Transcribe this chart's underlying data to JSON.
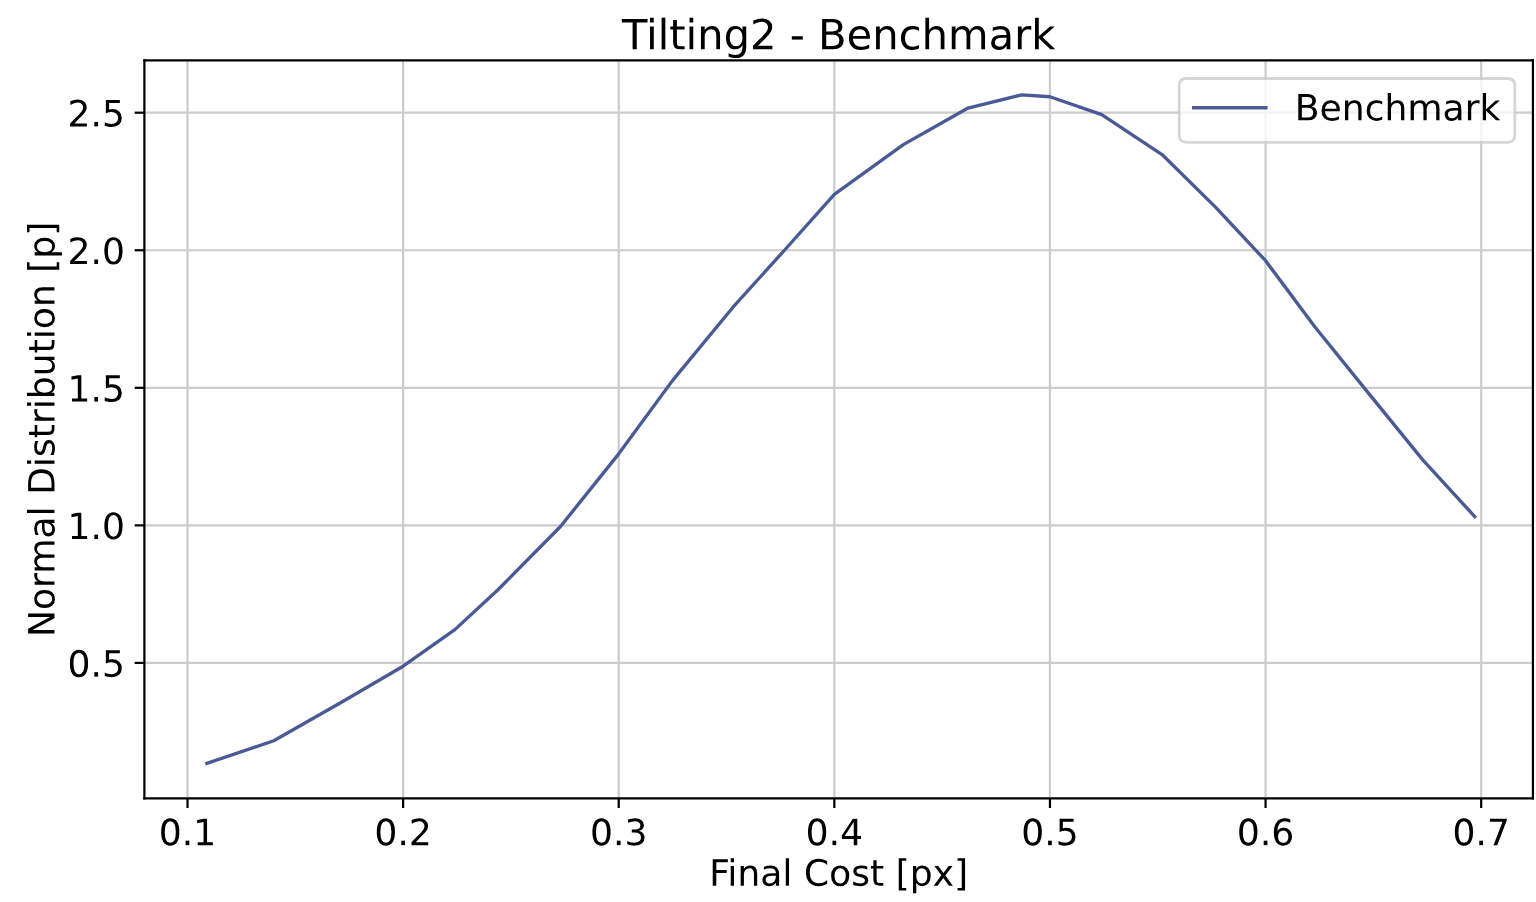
{
  "chart_data": {
    "type": "line",
    "title": "Tilting2 - Benchmark",
    "xlabel": "Final Cost [px]",
    "ylabel": "Normal Distribution [p]",
    "series": [
      {
        "name": "Benchmark",
        "color": "#4a5a95",
        "x": [
          0.109,
          0.14,
          0.171,
          0.2,
          0.224,
          0.244,
          0.273,
          0.3,
          0.325,
          0.353,
          0.378,
          0.4,
          0.432,
          0.462,
          0.487,
          0.5,
          0.524,
          0.552,
          0.577,
          0.6,
          0.623,
          0.648,
          0.673,
          0.697
        ],
        "values": [
          0.135,
          0.217,
          0.355,
          0.488,
          0.621,
          0.766,
          0.996,
          1.26,
          1.527,
          1.793,
          2.01,
          2.203,
          2.384,
          2.517,
          2.565,
          2.558,
          2.493,
          2.348,
          2.155,
          1.962,
          1.72,
          1.478,
          1.237,
          1.032
        ]
      }
    ],
    "xlim": [
      0.08,
      0.724
    ],
    "ylim": [
      0.008,
      2.69
    ],
    "xticks": [
      0.1,
      0.2,
      0.3,
      0.4,
      0.5,
      0.6,
      0.7
    ],
    "yticks": [
      0.5,
      {
        "value": 1,
        "label": "1.0"
      },
      1.5,
      {
        "value": 2,
        "label": "2.0"
      },
      2.5
    ],
    "grid": true,
    "legend": "top right",
    "marker": "none",
    "line_style": "solid"
  }
}
